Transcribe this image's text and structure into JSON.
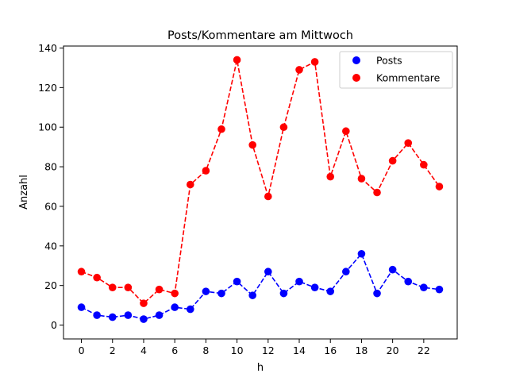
{
  "chart_data": {
    "type": "line",
    "title": "Posts/Kommentare am Mittwoch",
    "xlabel": "h",
    "ylabel": "Anzahl",
    "x": [
      0,
      1,
      2,
      3,
      4,
      5,
      6,
      7,
      8,
      9,
      10,
      11,
      12,
      13,
      14,
      15,
      16,
      17,
      18,
      19,
      20,
      21,
      22,
      23
    ],
    "xlim": [
      -1.15,
      24.15
    ],
    "ylim": [
      -7,
      141
    ],
    "xticks": [
      0,
      2,
      4,
      6,
      8,
      10,
      12,
      14,
      16,
      18,
      20,
      22
    ],
    "xtick_labels": [
      "0",
      "2",
      "4",
      "6",
      "8",
      "10",
      "12",
      "14",
      "16",
      "18",
      "20",
      "22"
    ],
    "yticks": [
      0,
      20,
      40,
      60,
      80,
      100,
      120,
      140
    ],
    "ytick_labels": [
      "0",
      "20",
      "40",
      "60",
      "80",
      "100",
      "120",
      "140"
    ],
    "grid": false,
    "legend_position": "top-right",
    "series": [
      {
        "name": "Posts",
        "color": "#0000ff",
        "line_style": "dashed",
        "marker": "circle",
        "values": [
          9,
          5,
          4,
          5,
          3,
          5,
          9,
          8,
          17,
          16,
          22,
          15,
          27,
          16,
          22,
          19,
          17,
          27,
          36,
          16,
          28,
          22,
          19,
          18
        ]
      },
      {
        "name": "Kommentare",
        "color": "#ff0000",
        "line_style": "dashed",
        "marker": "circle",
        "values": [
          27,
          24,
          19,
          19,
          11,
          18,
          16,
          71,
          78,
          99,
          134,
          91,
          65,
          100,
          129,
          133,
          75,
          98,
          74,
          67,
          83,
          92,
          81,
          70
        ]
      }
    ]
  }
}
